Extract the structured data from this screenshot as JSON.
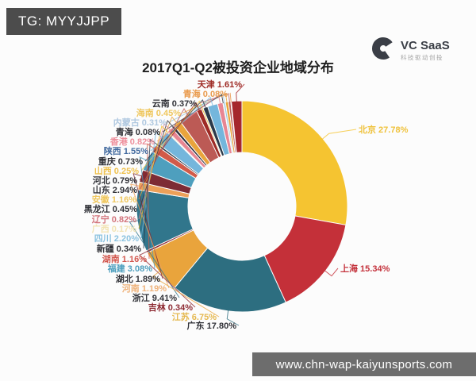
{
  "overlay_badge": {
    "text": "TG: MYYJJPP"
  },
  "logo": {
    "name": "VC SaaS",
    "tagline": "科技驱动创投",
    "icon": "vc-saas-logo-icon",
    "color": "#3A3E46"
  },
  "watermark": {
    "text": "www.chn-wap-kaiyunsports.com"
  },
  "chart_data": {
    "type": "pie",
    "title": "2017Q1-Q2被投资企业地域分布",
    "donut": true,
    "start_angle": "top",
    "direction": "clockwise",
    "legend_position": "none",
    "background": "#FCFCFC",
    "label_format": "{name} {value}%",
    "series": [
      {
        "name": "北京",
        "value": 27.78,
        "color": "#F5C431",
        "label_color": "#EFC23C",
        "side": "right"
      },
      {
        "name": "上海",
        "value": 15.34,
        "color": "#C43039",
        "label_color": "#C4323C",
        "side": "right"
      },
      {
        "name": "广东",
        "value": 17.8,
        "color": "#2D6E80",
        "label_color": "#2F3036",
        "side": "left"
      },
      {
        "name": "江苏",
        "value": 6.75,
        "color": "#E9A43C",
        "label_color": "#E5B84F",
        "side": "left"
      },
      {
        "name": "吉林",
        "value": 0.34,
        "color": "#8E2B33",
        "label_color": "#8E2B33",
        "side": "left"
      },
      {
        "name": "浙江",
        "value": 9.41,
        "color": "#31768C",
        "label_color": "#2F3036",
        "side": "left"
      },
      {
        "name": "河南",
        "value": 1.19,
        "color": "#ECA059",
        "label_color": "#EFB27A",
        "side": "left"
      },
      {
        "name": "湖北",
        "value": 1.89,
        "color": "#7D2B35",
        "label_color": "#2F3036",
        "side": "left"
      },
      {
        "name": "福建",
        "value": 3.08,
        "color": "#4E9FBE",
        "label_color": "#4E9FBE",
        "side": "left"
      },
      {
        "name": "湖南",
        "value": 1.16,
        "color": "#D25B49",
        "label_color": "#D2574E",
        "side": "left"
      },
      {
        "name": "新疆",
        "value": 0.34,
        "color": "#2B3A4A",
        "label_color": "#2F3036",
        "side": "left"
      },
      {
        "name": "四川",
        "value": 2.2,
        "color": "#74B6DC",
        "label_color": "#8CC3E0",
        "side": "left"
      },
      {
        "name": "广西",
        "value": 0.17,
        "color": "#F2C02E",
        "label_color": "#F2E3B2",
        "side": "left"
      },
      {
        "name": "辽宁",
        "value": 0.82,
        "color": "#E88693",
        "label_color": "#D2737B",
        "side": "left"
      },
      {
        "name": "黑龙江",
        "value": 0.45,
        "color": "#33323E",
        "label_color": "#2F3036",
        "side": "left"
      },
      {
        "name": "安徽",
        "value": 1.16,
        "color": "#E9A43C",
        "label_color": "#EFC75E",
        "side": "left"
      },
      {
        "name": "山东",
        "value": 2.94,
        "color": "#BC5A55",
        "label_color": "#2F3036",
        "side": "left"
      },
      {
        "name": "河北",
        "value": 0.79,
        "color": "#9E2B25",
        "label_color": "#2F3036",
        "side": "left"
      },
      {
        "name": "山西",
        "value": 0.25,
        "color": "#F2C94C",
        "label_color": "#EFC14E",
        "side": "left"
      },
      {
        "name": "重庆",
        "value": 0.73,
        "color": "#2B3A4A",
        "label_color": "#2F3036",
        "side": "left"
      },
      {
        "name": "陕西",
        "value": 1.55,
        "color": "#74B6DC",
        "label_color": "#41699E",
        "side": "left"
      },
      {
        "name": "香港",
        "value": 0.82,
        "color": "#E88693",
        "label_color": "#EE8F9C",
        "side": "left"
      },
      {
        "name": "青海",
        "value": 0.08,
        "color": "#33323E",
        "label_color": "#2F3036",
        "side": "left"
      },
      {
        "name": "内蒙古",
        "value": 0.31,
        "color": "#9FCCE0",
        "label_color": "#AFC8E0",
        "side": "left"
      },
      {
        "name": "海南",
        "value": 0.45,
        "color": "#E9A43C",
        "label_color": "#EFC75E",
        "side": "left"
      },
      {
        "name": "云南",
        "value": 0.37,
        "color": "#BC5A55",
        "label_color": "#2F3036",
        "side": "left"
      },
      {
        "name": "青海",
        "value": 0.08,
        "color": "#E98F3C",
        "label_color": "#E99A4C",
        "side": "left"
      },
      {
        "name": "天津",
        "value": 1.61,
        "color": "#A5282C",
        "label_color": "#9E2B25",
        "side": "left"
      }
    ]
  }
}
